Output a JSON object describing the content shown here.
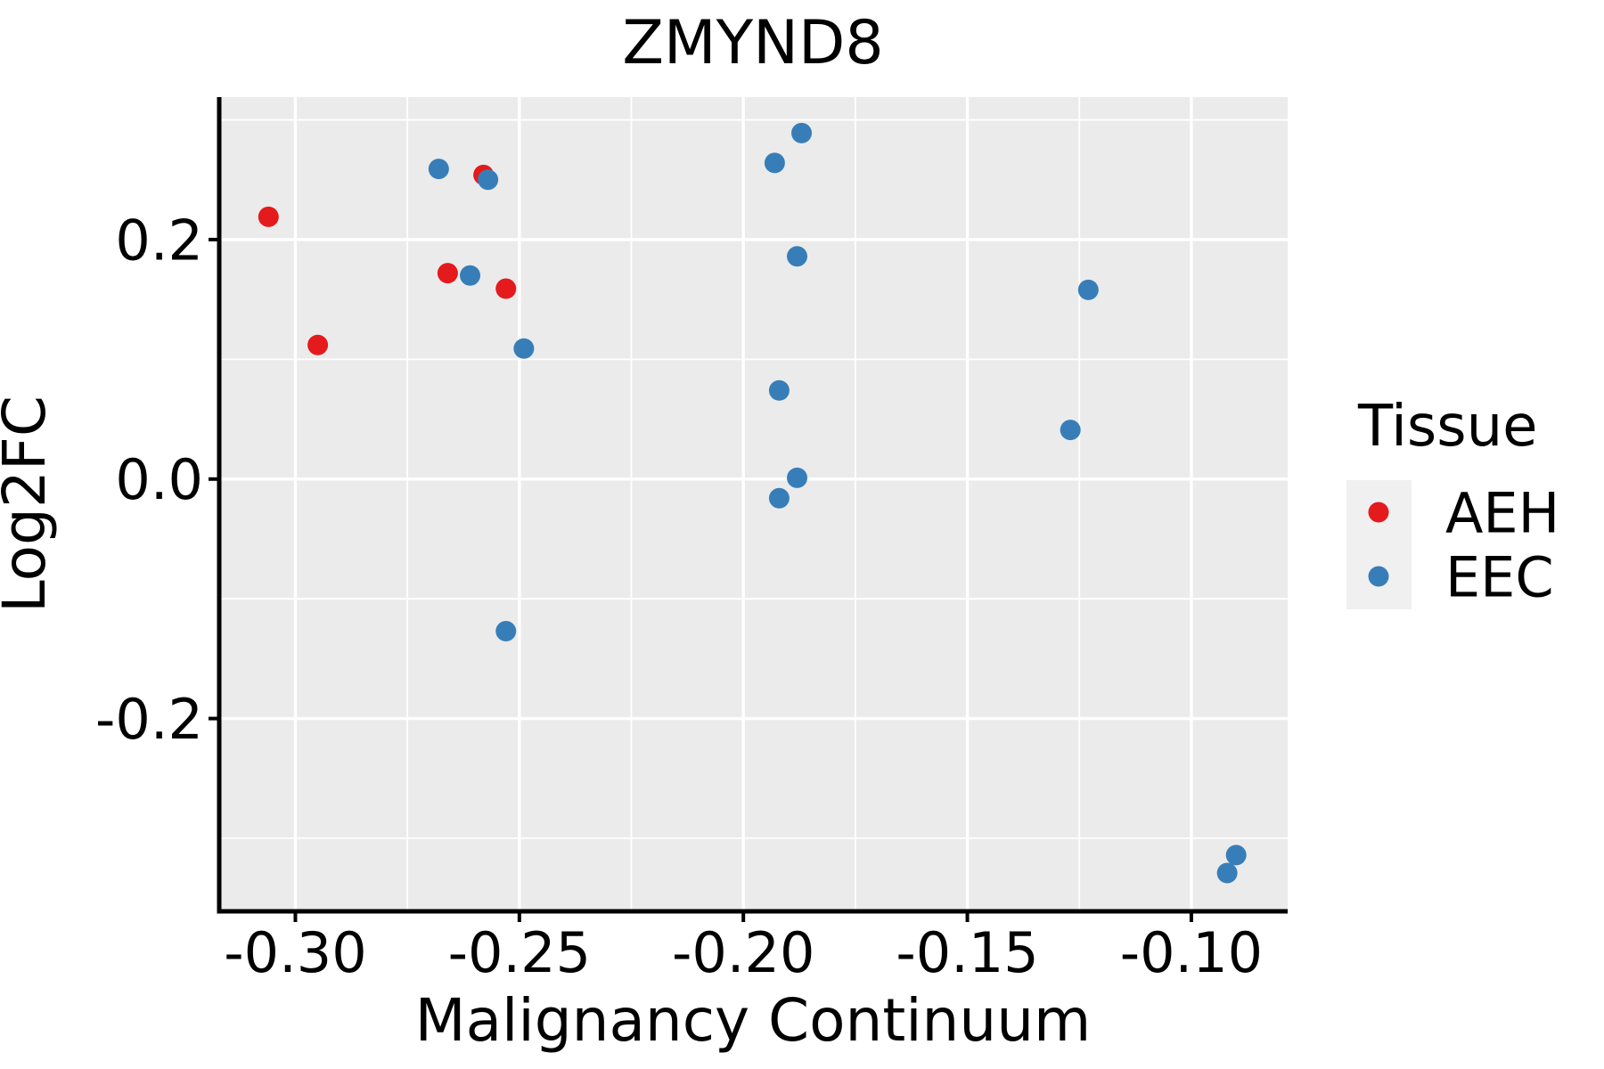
{
  "chart_data": {
    "type": "scatter",
    "title": "ZMYND8",
    "xlabel": "Malignancy Continuum",
    "ylabel": "Log2FC",
    "legend": {
      "title": "Tissue",
      "position": "right",
      "entries": [
        {
          "label": "AEH",
          "color": "#E41A1C"
        },
        {
          "label": "EEC",
          "color": "#377EB8"
        }
      ]
    },
    "xlim": [
      -0.317,
      -0.0785
    ],
    "ylim": [
      -0.361,
      0.319
    ],
    "x_ticks": {
      "values": [
        -0.3,
        -0.25,
        -0.2,
        -0.15,
        -0.1
      ],
      "labels": [
        "-0.30",
        "-0.25",
        "-0.20",
        "-0.15",
        "-0.10"
      ]
    },
    "x_minor_ticks": [
      -0.275,
      -0.225,
      -0.175,
      -0.125
    ],
    "y_ticks": {
      "values": [
        0.2,
        0.0,
        -0.2
      ],
      "labels": [
        "0.2",
        "0.0",
        "-0.2"
      ]
    },
    "y_minor_ticks": [
      0.3,
      0.1,
      -0.1,
      -0.3
    ],
    "grid": true,
    "series": [
      {
        "name": "AEH",
        "color": "#E41A1C",
        "points": [
          [
            -0.306,
            0.219
          ],
          [
            -0.295,
            0.112
          ],
          [
            -0.266,
            0.172
          ],
          [
            -0.258,
            0.254
          ],
          [
            -0.253,
            0.159
          ]
        ]
      },
      {
        "name": "EEC",
        "color": "#377EB8",
        "points": [
          [
            -0.268,
            0.259
          ],
          [
            -0.257,
            0.25
          ],
          [
            -0.261,
            0.17
          ],
          [
            -0.249,
            0.109
          ],
          [
            -0.253,
            -0.127
          ],
          [
            -0.193,
            0.264
          ],
          [
            -0.187,
            0.289
          ],
          [
            -0.188,
            0.186
          ],
          [
            -0.192,
            0.074
          ],
          [
            -0.188,
            0.001
          ],
          [
            -0.192,
            -0.016
          ],
          [
            -0.123,
            0.158
          ],
          [
            -0.127,
            0.041
          ],
          [
            -0.09,
            -0.314
          ],
          [
            -0.092,
            -0.329
          ]
        ]
      }
    ],
    "style": {
      "panel_bg": "#EBEBEB",
      "grid_color": "#FFFFFF",
      "axis_color": "#000000",
      "text_color": "#000000",
      "legend_key_bg": "#F0F0F0",
      "point_radius": 11.5
    }
  }
}
